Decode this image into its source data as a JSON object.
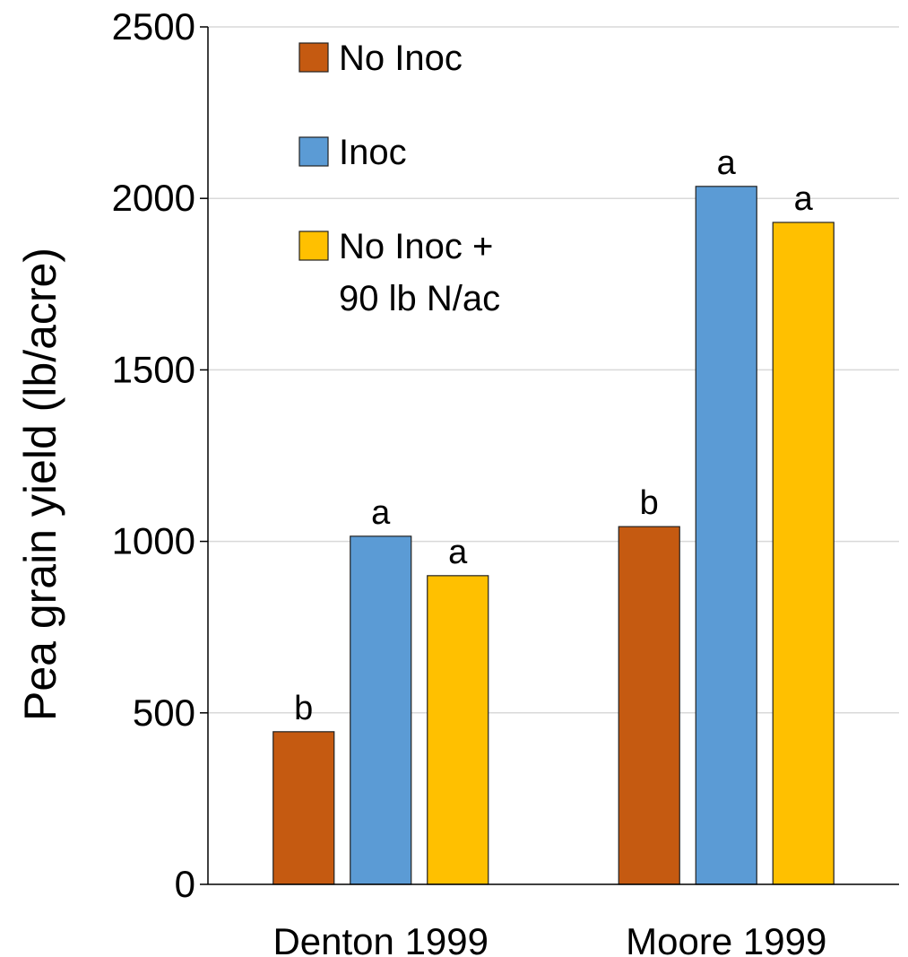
{
  "chart_data": {
    "type": "bar",
    "categories": [
      "Denton 1999",
      "Moore 1999"
    ],
    "series": [
      {
        "name": "No Inoc",
        "values": [
          445,
          1043
        ],
        "letters": [
          "b",
          "b"
        ],
        "color": "#C55A11",
        "legend_lines": [
          "No Inoc"
        ]
      },
      {
        "name": "Inoc",
        "values": [
          1015,
          2035
        ],
        "letters": [
          "a",
          "a"
        ],
        "color": "#5B9BD5",
        "legend_lines": [
          "Inoc"
        ]
      },
      {
        "name": "No Inoc + 90 lb N/ac",
        "values": [
          900,
          1930
        ],
        "letters": [
          "a",
          "a"
        ],
        "color": "#FFC000",
        "legend_lines": [
          "No Inoc +",
          "90 lb N/ac"
        ]
      }
    ],
    "ylabel": "Pea grain yield (lb/acre)",
    "ylim": [
      0,
      2500
    ],
    "yticks": [
      0,
      500,
      1000,
      1500,
      2000,
      2500
    ],
    "grid": true,
    "legend_position": "top-left"
  }
}
